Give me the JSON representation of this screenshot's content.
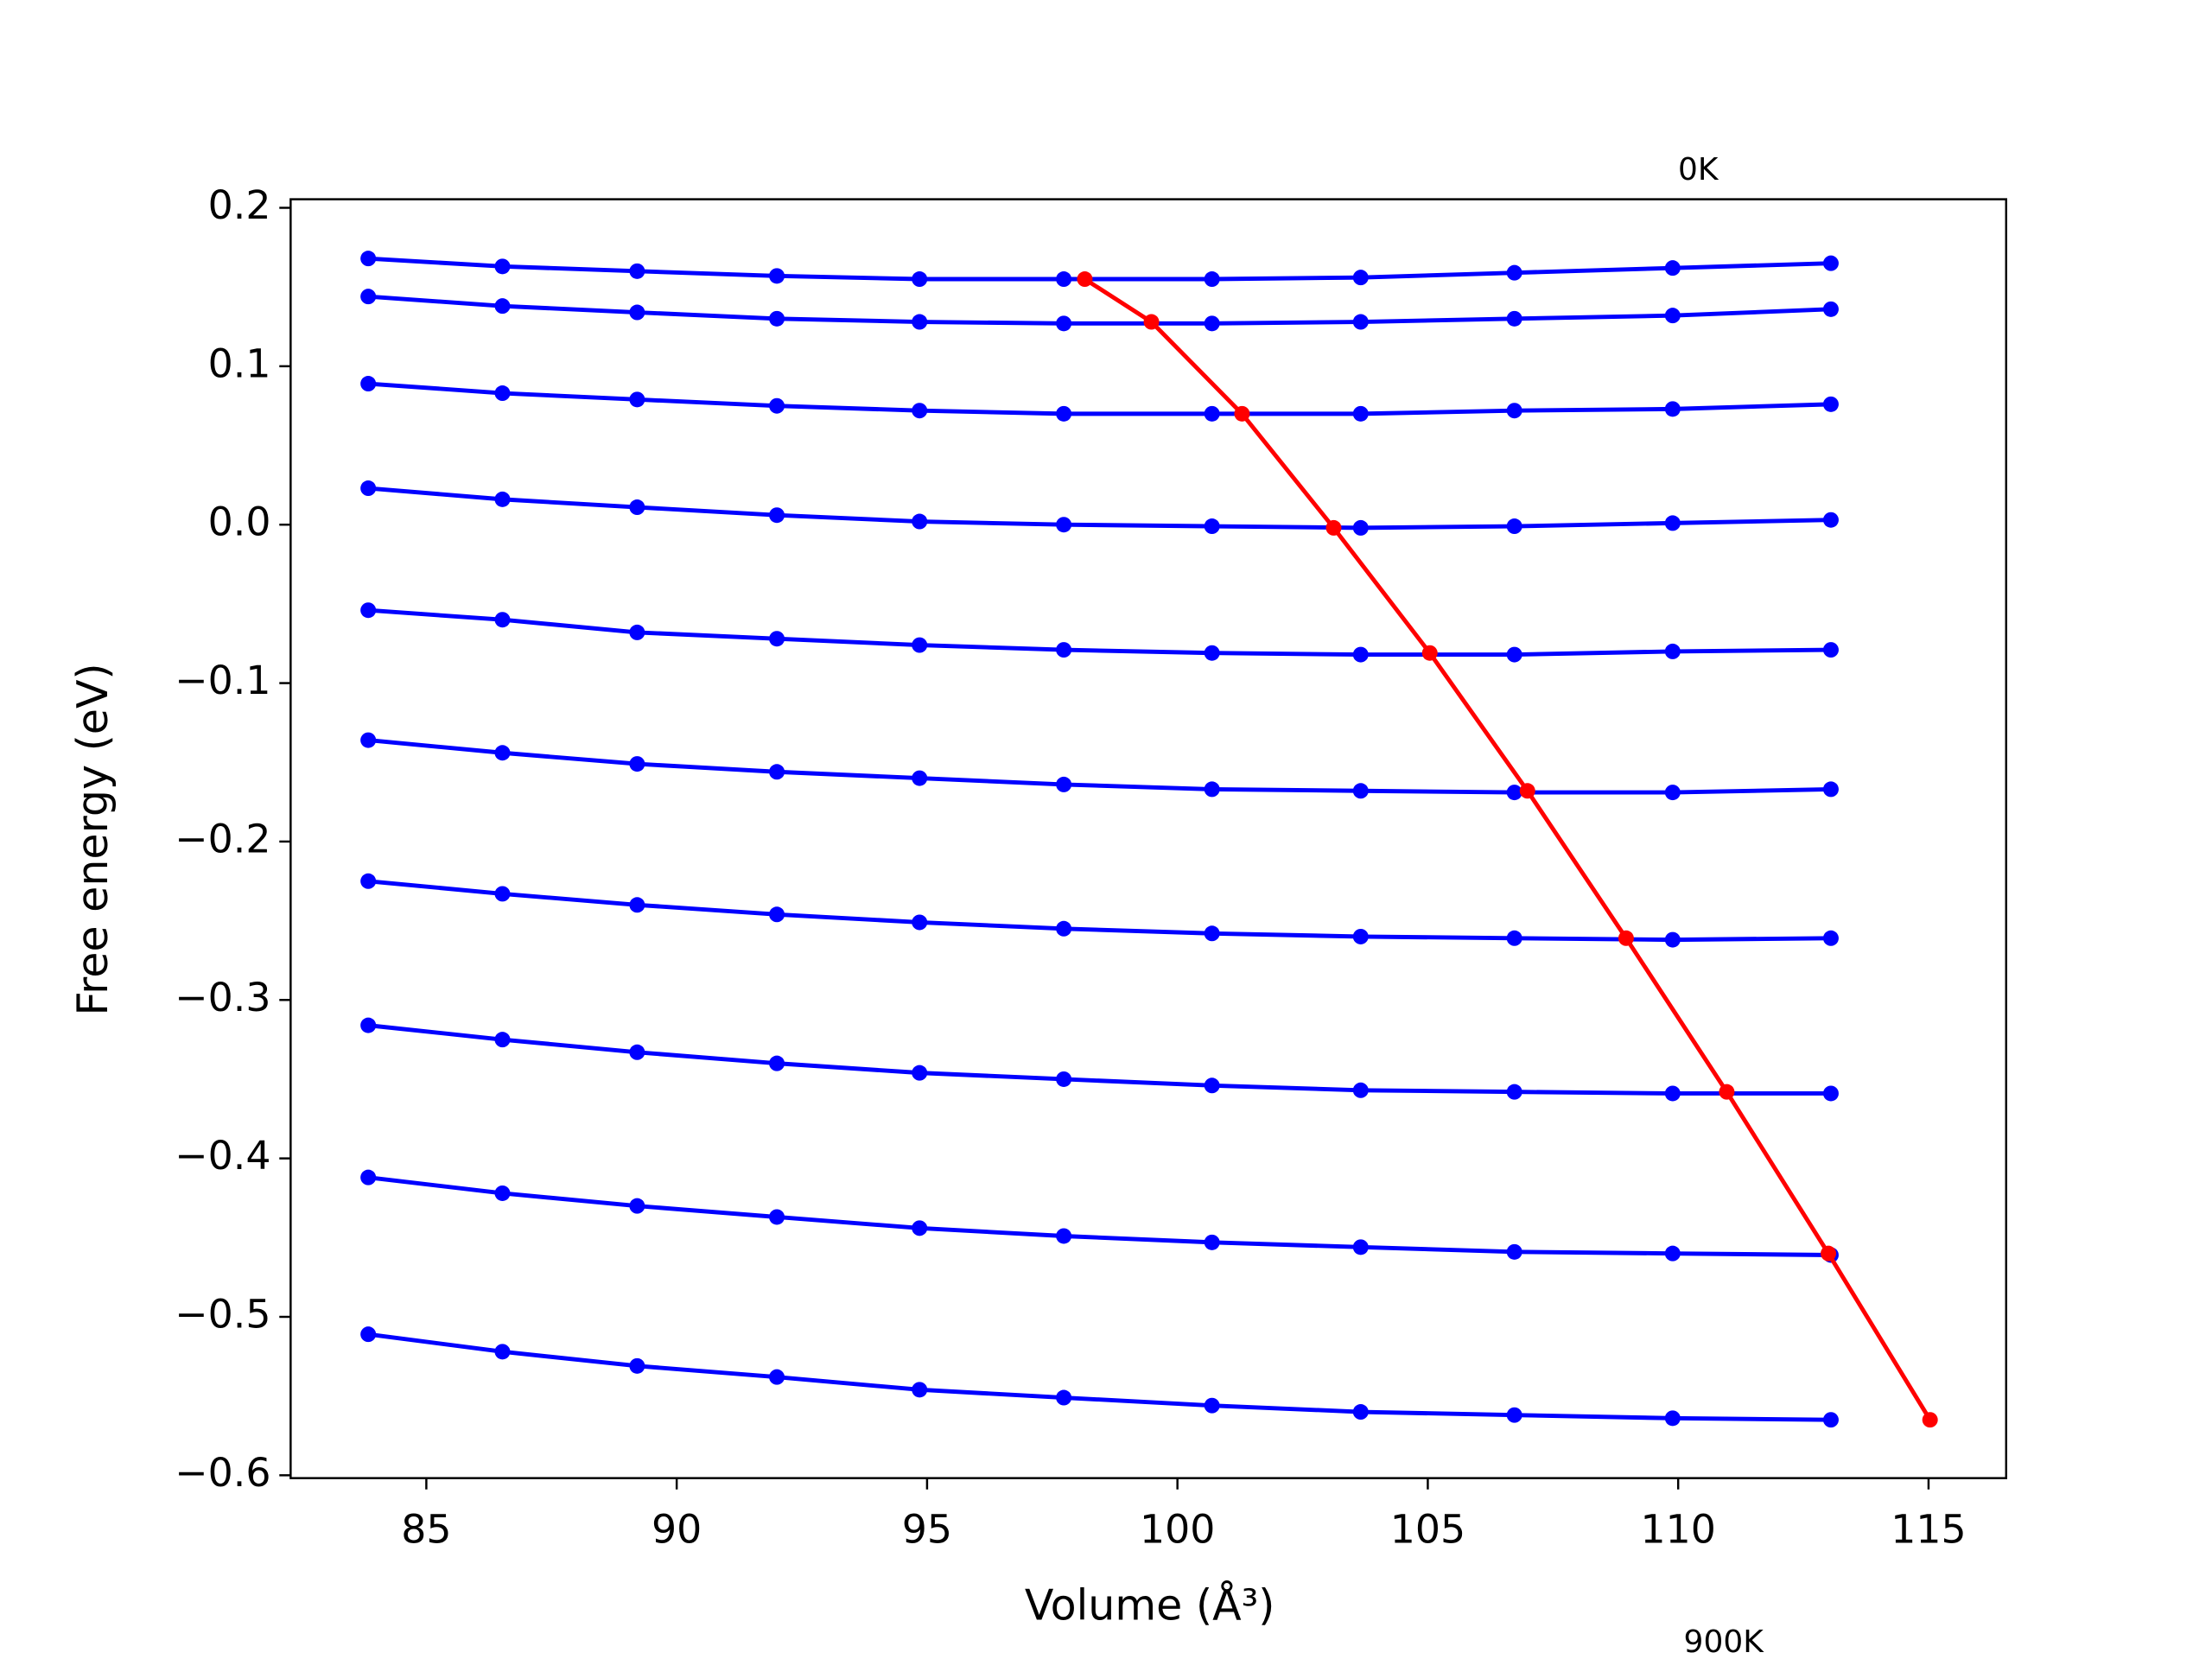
{
  "chart_data": {
    "type": "line",
    "xlabel": "Volume (Å³)",
    "ylabel": "Free energy (eV)",
    "annotations": [
      "0K",
      "900K"
    ],
    "xlim": [
      82.29,
      116.55
    ],
    "ylim": [
      -0.6018,
      0.2054
    ],
    "xticks": [
      85,
      90,
      95,
      100,
      105,
      110,
      115
    ],
    "yticks": [
      {
        "value": -0.6,
        "label": "−0.6"
      },
      {
        "value": -0.5,
        "label": "−0.5"
      },
      {
        "value": -0.4,
        "label": "−0.4"
      },
      {
        "value": -0.3,
        "label": "−0.3"
      },
      {
        "value": -0.2,
        "label": "−0.2"
      },
      {
        "value": -0.1,
        "label": "−0.1"
      },
      {
        "value": 0,
        "label": "0.0"
      },
      0.1,
      0.2
    ],
    "x": [
      83.84,
      86.52,
      89.21,
      92.0,
      94.85,
      97.73,
      100.69,
      103.66,
      106.73,
      109.89,
      113.05
    ],
    "series": [
      {
        "color": "#0000ff",
        "values": [
          0.168,
          0.163,
          0.16,
          0.157,
          0.155,
          0.155,
          0.155,
          0.156,
          0.159,
          0.162,
          0.165
        ]
      },
      {
        "color": "#0000ff",
        "values": [
          0.144,
          0.138,
          0.134,
          0.13,
          0.128,
          0.127,
          0.127,
          0.128,
          0.13,
          0.132,
          0.136
        ]
      },
      {
        "color": "#0000ff",
        "values": [
          0.089,
          0.083,
          0.079,
          0.075,
          0.072,
          0.07,
          0.07,
          0.07,
          0.072,
          0.073,
          0.076
        ]
      },
      {
        "color": "#0000ff",
        "values": [
          0.023,
          0.016,
          0.011,
          0.006,
          0.002,
          0.0,
          -0.001,
          -0.002,
          -0.001,
          0.001,
          0.003
        ]
      },
      {
        "color": "#0000ff",
        "values": [
          -0.054,
          -0.06,
          -0.068,
          -0.072,
          -0.076,
          -0.079,
          -0.081,
          -0.082,
          -0.082,
          -0.08,
          -0.079
        ]
      },
      {
        "color": "#0000ff",
        "values": [
          -0.136,
          -0.144,
          -0.151,
          -0.156,
          -0.16,
          -0.164,
          -0.167,
          -0.168,
          -0.169,
          -0.169,
          -0.167
        ]
      },
      {
        "color": "#0000ff",
        "values": [
          -0.225,
          -0.233,
          -0.24,
          -0.246,
          -0.251,
          -0.255,
          -0.258,
          -0.26,
          -0.261,
          -0.262,
          -0.261
        ]
      },
      {
        "color": "#0000ff",
        "values": [
          -0.316,
          -0.325,
          -0.333,
          -0.34,
          -0.346,
          -0.35,
          -0.354,
          -0.357,
          -0.358,
          -0.359,
          -0.359
        ]
      },
      {
        "color": "#0000ff",
        "values": [
          -0.412,
          -0.422,
          -0.43,
          -0.437,
          -0.444,
          -0.449,
          -0.453,
          -0.456,
          -0.459,
          -0.46,
          -0.461
        ]
      },
      {
        "color": "#0000ff",
        "values": [
          -0.511,
          -0.522,
          -0.531,
          -0.538,
          -0.546,
          -0.551,
          -0.556,
          -0.56,
          -0.562,
          -0.564,
          -0.565
        ]
      },
      {
        "color": "#ff0000",
        "x": [
          98.15,
          99.48,
          101.29,
          103.12,
          105.04,
          106.99,
          108.96,
          110.97,
          113.0,
          115.03
        ],
        "values": [
          0.155,
          0.128,
          0.07,
          -0.002,
          -0.081,
          -0.168,
          -0.261,
          -0.358,
          -0.46,
          -0.565
        ]
      }
    ]
  }
}
